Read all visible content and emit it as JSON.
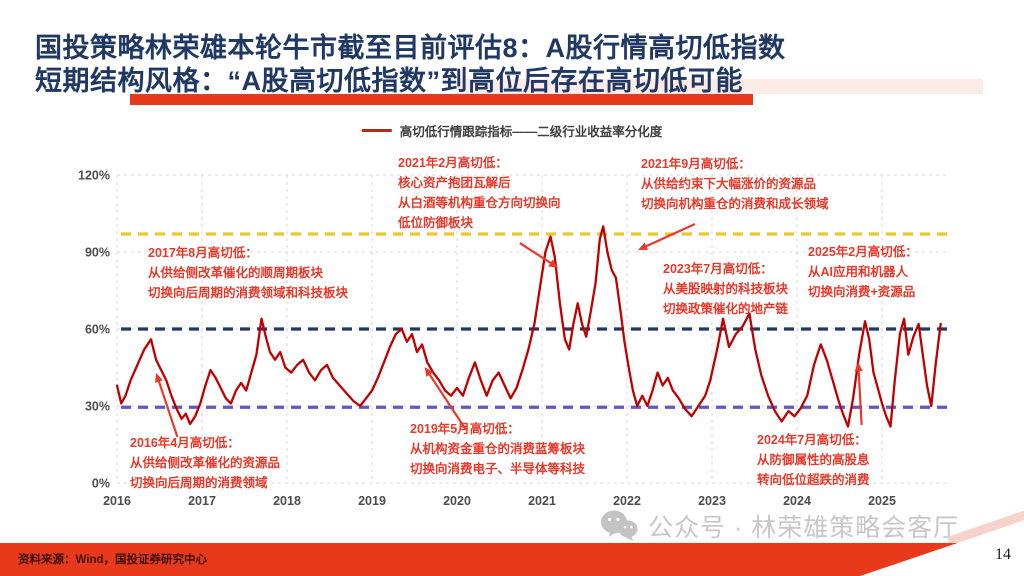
{
  "slide": {
    "title_line1": "国投策略林荣雄本轮牛市截至目前评估8：A股行情高切低指数",
    "title_line2": "短期结构风格：“A股高切低指数”到高位后存在高切低可能",
    "source_note": "资料来源：Wind，国投证券研究中心",
    "page_number": "14",
    "watermark": "公众号 · 林荣雄策略会客厅",
    "accent_red": "#e8391b",
    "title_navy": "#1f3864"
  },
  "legend": {
    "label": "高切低行情跟踪指标——二级行业收益率分化度",
    "line_color": "#b02a1e"
  },
  "annotations": {
    "a2017": {
      "title": "2017年8月高切低：",
      "l1": "从供给侧改革催化的顺周期板块",
      "l2": "切换向后周期的消费领域和科技板块"
    },
    "a2021feb": {
      "title": "2021年2月高切低：",
      "l1": "核心资产抱团瓦解后",
      "l2": "从白酒等机构重仓方向切换向",
      "l3": "低位防御板块"
    },
    "a2021sep": {
      "title": "2021年9月高切低：",
      "l1": "从供给约束下大幅涨价的资源品",
      "l2": "切换向机构重仓的消费和成长领域"
    },
    "a2023": {
      "title": "2023年7月高切低：",
      "l1": "从美股映射的科技板块",
      "l2": "切换政策催化的地产链"
    },
    "a2025": {
      "title": "2025年2月高切低：",
      "l1": "从AI应用和机器人",
      "l2": "切换向消费+资源品"
    },
    "a2016": {
      "title": "2016年4月高切低：",
      "l1": "从供给侧改革催化的资源品",
      "l2": "切换向后周期的消费领域"
    },
    "a2019": {
      "title": "2019年5月高切低：",
      "l1": "从机构资金重仓的消费蓝筹板块",
      "l2": "切换向消费电子、半导体等科技"
    },
    "a2024": {
      "title": "2024年7月高切低：",
      "l1": "从防御属性的高股息",
      "l2": "转向低位超跌的消费"
    }
  },
  "chart_data": {
    "type": "line",
    "title": "高切低行情跟踪指标——二级行业收益率分化度",
    "xlabel": "",
    "ylabel": "",
    "ylim": [
      0,
      120
    ],
    "xlim": [
      2016,
      2025.75
    ],
    "grid": true,
    "legend_position": "top",
    "line_color": "#c00000",
    "arrow_color": "#e8392a",
    "grid_color": "#d9d9d9",
    "tick_color": "#4d4d4d",
    "y_ticks": [
      {
        "value": 0,
        "label": "0%"
      },
      {
        "value": 30,
        "label": "30%"
      },
      {
        "value": 60,
        "label": "60%"
      },
      {
        "value": 90,
        "label": "90%"
      },
      {
        "value": 120,
        "label": "120%"
      }
    ],
    "x_ticks": [
      2016,
      2017,
      2018,
      2019,
      2020,
      2021,
      2022,
      2023,
      2024,
      2025
    ],
    "ref_lines": [
      {
        "value": 97,
        "color": "#edc62d",
        "style": "dashed"
      },
      {
        "value": 60,
        "color": "#1f3864",
        "style": "dashed"
      },
      {
        "value": 29.5,
        "color": "#6456c8",
        "style": "dashed"
      }
    ],
    "series": [
      {
        "name": "高切低行情跟踪指标——二级行业收益率分化度",
        "points": [
          [
            2016.0,
            38
          ],
          [
            2016.05,
            31
          ],
          [
            2016.1,
            34
          ],
          [
            2016.16,
            40
          ],
          [
            2016.24,
            46
          ],
          [
            2016.32,
            52
          ],
          [
            2016.4,
            56
          ],
          [
            2016.46,
            48
          ],
          [
            2016.52,
            44
          ],
          [
            2016.58,
            40
          ],
          [
            2016.64,
            34
          ],
          [
            2016.7,
            29
          ],
          [
            2016.76,
            25
          ],
          [
            2016.81,
            27
          ],
          [
            2016.86,
            23
          ],
          [
            2016.92,
            26
          ],
          [
            2016.98,
            31
          ],
          [
            2017.04,
            38
          ],
          [
            2017.1,
            44
          ],
          [
            2017.16,
            41
          ],
          [
            2017.22,
            37
          ],
          [
            2017.28,
            33
          ],
          [
            2017.34,
            31
          ],
          [
            2017.4,
            36
          ],
          [
            2017.46,
            39
          ],
          [
            2017.52,
            36
          ],
          [
            2017.58,
            43
          ],
          [
            2017.64,
            50
          ],
          [
            2017.7,
            64
          ],
          [
            2017.75,
            57
          ],
          [
            2017.8,
            51
          ],
          [
            2017.86,
            48
          ],
          [
            2017.92,
            51
          ],
          [
            2017.98,
            45
          ],
          [
            2018.05,
            43
          ],
          [
            2018.12,
            46
          ],
          [
            2018.19,
            48
          ],
          [
            2018.26,
            43
          ],
          [
            2018.33,
            40
          ],
          [
            2018.4,
            44
          ],
          [
            2018.47,
            46
          ],
          [
            2018.54,
            41
          ],
          [
            2018.62,
            38
          ],
          [
            2018.7,
            35
          ],
          [
            2018.78,
            32
          ],
          [
            2018.86,
            30
          ],
          [
            2018.93,
            33
          ],
          [
            2019.0,
            36
          ],
          [
            2019.07,
            41
          ],
          [
            2019.14,
            47
          ],
          [
            2019.21,
            53
          ],
          [
            2019.28,
            58
          ],
          [
            2019.35,
            60
          ],
          [
            2019.41,
            55
          ],
          [
            2019.47,
            58
          ],
          [
            2019.53,
            51
          ],
          [
            2019.59,
            54
          ],
          [
            2019.65,
            47
          ],
          [
            2019.72,
            43
          ],
          [
            2019.79,
            40
          ],
          [
            2019.86,
            36
          ],
          [
            2019.93,
            34
          ],
          [
            2020.0,
            37
          ],
          [
            2020.07,
            34
          ],
          [
            2020.14,
            41
          ],
          [
            2020.21,
            47
          ],
          [
            2020.28,
            40
          ],
          [
            2020.35,
            34
          ],
          [
            2020.42,
            40
          ],
          [
            2020.49,
            43
          ],
          [
            2020.56,
            38
          ],
          [
            2020.63,
            33
          ],
          [
            2020.7,
            37
          ],
          [
            2020.77,
            44
          ],
          [
            2020.84,
            52
          ],
          [
            2020.91,
            62
          ],
          [
            2020.97,
            75
          ],
          [
            2021.04,
            90
          ],
          [
            2021.1,
            96
          ],
          [
            2021.15,
            88
          ],
          [
            2021.21,
            70
          ],
          [
            2021.27,
            56
          ],
          [
            2021.32,
            52
          ],
          [
            2021.37,
            62
          ],
          [
            2021.42,
            70
          ],
          [
            2021.47,
            62
          ],
          [
            2021.52,
            57
          ],
          [
            2021.57,
            66
          ],
          [
            2021.63,
            78
          ],
          [
            2021.68,
            95
          ],
          [
            2021.72,
            100
          ],
          [
            2021.77,
            90
          ],
          [
            2021.82,
            83
          ],
          [
            2021.87,
            80
          ],
          [
            2021.92,
            68
          ],
          [
            2021.97,
            55
          ],
          [
            2022.02,
            45
          ],
          [
            2022.07,
            36
          ],
          [
            2022.12,
            30
          ],
          [
            2022.18,
            34
          ],
          [
            2022.24,
            30
          ],
          [
            2022.3,
            36
          ],
          [
            2022.36,
            43
          ],
          [
            2022.42,
            38
          ],
          [
            2022.48,
            41
          ],
          [
            2022.54,
            36
          ],
          [
            2022.61,
            33
          ],
          [
            2022.68,
            29
          ],
          [
            2022.76,
            26
          ],
          [
            2022.84,
            30
          ],
          [
            2022.92,
            34
          ],
          [
            2022.98,
            40
          ],
          [
            2023.06,
            52
          ],
          [
            2023.13,
            64
          ],
          [
            2023.2,
            53
          ],
          [
            2023.28,
            58
          ],
          [
            2023.36,
            61
          ],
          [
            2023.44,
            66
          ],
          [
            2023.51,
            52
          ],
          [
            2023.58,
            42
          ],
          [
            2023.66,
            34
          ],
          [
            2023.74,
            28
          ],
          [
            2023.82,
            24
          ],
          [
            2023.9,
            28
          ],
          [
            2023.97,
            26
          ],
          [
            2024.04,
            29
          ],
          [
            2024.12,
            34
          ],
          [
            2024.2,
            46
          ],
          [
            2024.28,
            54
          ],
          [
            2024.35,
            48
          ],
          [
            2024.42,
            40
          ],
          [
            2024.48,
            33
          ],
          [
            2024.54,
            27
          ],
          [
            2024.6,
            22
          ],
          [
            2024.66,
            33
          ],
          [
            2024.73,
            50
          ],
          [
            2024.8,
            63
          ],
          [
            2024.85,
            56
          ],
          [
            2024.9,
            43
          ],
          [
            2024.95,
            37
          ],
          [
            2025.0,
            31
          ],
          [
            2025.05,
            26
          ],
          [
            2025.1,
            22
          ],
          [
            2025.15,
            40
          ],
          [
            2025.21,
            58
          ],
          [
            2025.26,
            64
          ],
          [
            2025.31,
            50
          ],
          [
            2025.37,
            57
          ],
          [
            2025.43,
            62
          ],
          [
            2025.48,
            50
          ],
          [
            2025.53,
            38
          ],
          [
            2025.58,
            30
          ],
          [
            2025.63,
            46
          ],
          [
            2025.69,
            62
          ]
        ]
      }
    ],
    "arrows": [
      {
        "from": [
          2016.71,
          18.0
        ],
        "to": [
          2016.46,
          42.9
        ]
      },
      {
        "from": [
          2020.1,
          21.0
        ],
        "to": [
          2019.62,
          45.2
        ]
      },
      {
        "from": [
          2020.74,
          93.5
        ],
        "to": [
          2021.19,
          83.8
        ]
      },
      {
        "from": [
          2022.8,
          100.9
        ],
        "to": [
          2022.13,
          90.8
        ]
      },
      {
        "from": [
          2024.76,
          22.6
        ],
        "to": [
          2024.72,
          47.1
        ]
      }
    ]
  }
}
